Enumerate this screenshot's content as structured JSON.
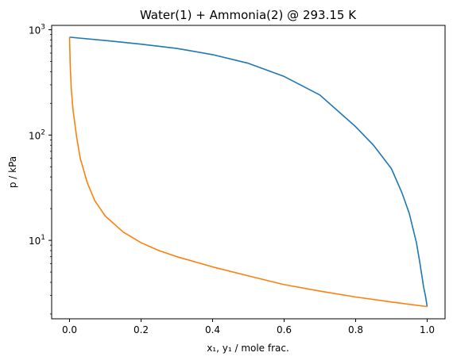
{
  "chart_data": {
    "type": "line",
    "title": "Water(1) + Ammonia(2) @ 293.15 K",
    "xlabel": "$x_1, y_1$ / mole frac.",
    "xlabel_display": "x₁, y₁ / mole frac.",
    "ylabel": "p / kPa",
    "xlim": [
      -0.05,
      1.05
    ],
    "ylim": [
      1.8,
      1100
    ],
    "yscale": "log",
    "grid": false,
    "xticks": [
      0.0,
      0.2,
      0.4,
      0.6,
      0.8,
      1.0
    ],
    "xtick_labels": [
      "0.0",
      "0.2",
      "0.4",
      "0.6",
      "0.8",
      "1.0"
    ],
    "yticks": [
      10,
      100,
      1000
    ],
    "ytick_labels": [
      "10",
      "10",
      "10"
    ],
    "ytick_exponents": [
      "1",
      "2",
      "3"
    ],
    "series": [
      {
        "color": "#1f77b4",
        "x": [
          0.0,
          0.1,
          0.2,
          0.3,
          0.4,
          0.5,
          0.6,
          0.7,
          0.8,
          0.85,
          0.9,
          0.93,
          0.95,
          0.97,
          0.98,
          0.99,
          0.995,
          1.0
        ],
        "y": [
          850,
          790,
          730,
          665,
          580,
          480,
          360,
          240,
          120,
          80,
          48,
          28,
          18,
          9.5,
          6,
          3.6,
          3.0,
          2.35
        ]
      },
      {
        "color": "#ff7f0e",
        "x": [
          0.0,
          0.002,
          0.005,
          0.01,
          0.02,
          0.03,
          0.05,
          0.07,
          0.1,
          0.15,
          0.2,
          0.25,
          0.3,
          0.4,
          0.5,
          0.6,
          0.7,
          0.8,
          0.9,
          1.0
        ],
        "y": [
          850,
          450,
          270,
          170,
          95,
          60,
          35,
          24,
          17,
          12,
          9.5,
          8,
          7,
          5.6,
          4.6,
          3.8,
          3.3,
          2.9,
          2.6,
          2.35
        ]
      }
    ]
  }
}
